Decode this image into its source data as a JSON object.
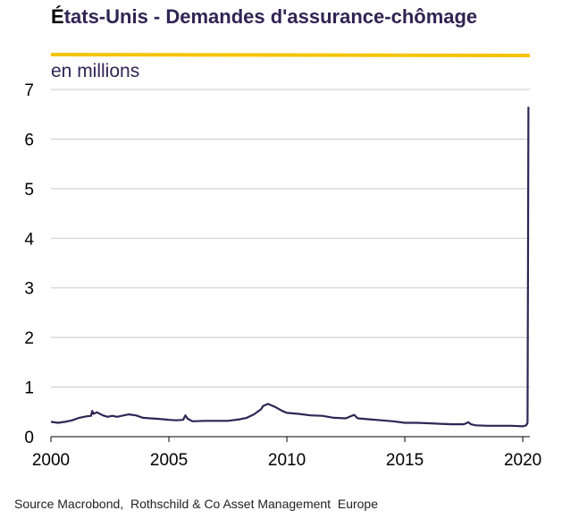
{
  "title_part1": "É",
  "title_part2": "tats-Unis - Demandes d'assurance-chômage",
  "unit_label": "en millions",
  "source": "Source Macrobond,  Rothschild & Co Asset Management  Europe",
  "colors": {
    "title": "#2f2554",
    "accent_rule": "#f5c400",
    "series": "#2f2554",
    "grid": "#c8c8c8"
  },
  "chart_data": {
    "type": "line",
    "title": "États-Unis - Demandes d'assurance-chômage",
    "ylabel": "en millions",
    "xlim": [
      2000,
      2020.3
    ],
    "ylim": [
      0,
      7
    ],
    "xticks": [
      2000,
      2005,
      2010,
      2015,
      2020
    ],
    "yticks": [
      0,
      1,
      2,
      3,
      4,
      5,
      6,
      7
    ],
    "grid": true,
    "series": [
      {
        "values": [
          [
            2000.0,
            0.3
          ],
          [
            2000.3,
            0.28
          ],
          [
            2000.6,
            0.3
          ],
          [
            2000.9,
            0.33
          ],
          [
            2001.2,
            0.38
          ],
          [
            2001.5,
            0.41
          ],
          [
            2001.7,
            0.42
          ],
          [
            2001.75,
            0.52
          ],
          [
            2001.8,
            0.46
          ],
          [
            2001.95,
            0.49
          ],
          [
            2002.2,
            0.43
          ],
          [
            2002.4,
            0.4
          ],
          [
            2002.6,
            0.42
          ],
          [
            2002.8,
            0.4
          ],
          [
            2003.0,
            0.42
          ],
          [
            2003.3,
            0.45
          ],
          [
            2003.6,
            0.43
          ],
          [
            2003.9,
            0.38
          ],
          [
            2004.2,
            0.37
          ],
          [
            2004.5,
            0.36
          ],
          [
            2004.8,
            0.35
          ],
          [
            2005.0,
            0.34
          ],
          [
            2005.3,
            0.33
          ],
          [
            2005.6,
            0.34
          ],
          [
            2005.7,
            0.43
          ],
          [
            2005.8,
            0.36
          ],
          [
            2006.0,
            0.31
          ],
          [
            2006.5,
            0.32
          ],
          [
            2007.0,
            0.32
          ],
          [
            2007.5,
            0.32
          ],
          [
            2008.0,
            0.35
          ],
          [
            2008.3,
            0.38
          ],
          [
            2008.6,
            0.45
          ],
          [
            2008.9,
            0.55
          ],
          [
            2009.0,
            0.62
          ],
          [
            2009.2,
            0.66
          ],
          [
            2009.5,
            0.6
          ],
          [
            2009.8,
            0.52
          ],
          [
            2010.0,
            0.48
          ],
          [
            2010.5,
            0.46
          ],
          [
            2011.0,
            0.43
          ],
          [
            2011.5,
            0.42
          ],
          [
            2012.0,
            0.38
          ],
          [
            2012.5,
            0.37
          ],
          [
            2012.85,
            0.44
          ],
          [
            2013.0,
            0.37
          ],
          [
            2013.5,
            0.35
          ],
          [
            2014.0,
            0.33
          ],
          [
            2014.5,
            0.31
          ],
          [
            2015.0,
            0.28
          ],
          [
            2015.5,
            0.28
          ],
          [
            2016.0,
            0.27
          ],
          [
            2016.5,
            0.26
          ],
          [
            2017.0,
            0.25
          ],
          [
            2017.5,
            0.25
          ],
          [
            2017.7,
            0.29
          ],
          [
            2017.8,
            0.25
          ],
          [
            2018.0,
            0.23
          ],
          [
            2018.5,
            0.22
          ],
          [
            2019.0,
            0.22
          ],
          [
            2019.5,
            0.22
          ],
          [
            2020.0,
            0.21
          ],
          [
            2020.15,
            0.23
          ],
          [
            2020.2,
            0.28
          ],
          [
            2020.22,
            3.3
          ],
          [
            2020.24,
            6.65
          ]
        ]
      }
    ]
  }
}
